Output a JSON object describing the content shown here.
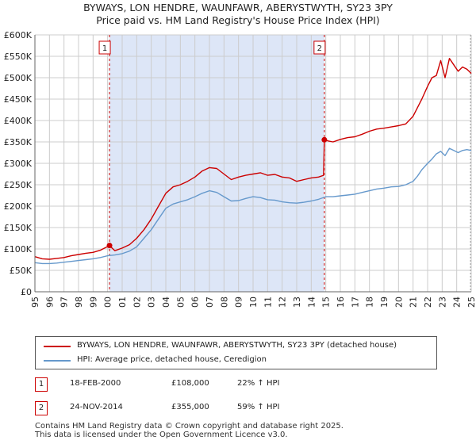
{
  "title_line1": "BYWAYS, LON HENDRE, WAUNFAWR, ABERYSTWYTH, SY23 3PY",
  "title_line2": "Price paid vs. HM Land Registry's House Price Index (HPI)",
  "colors": {
    "property": "#cc0000",
    "hpi": "#6699cc",
    "shade": "#dde6f7",
    "grid": "#cccccc"
  },
  "chart_data": {
    "type": "line",
    "xlim": [
      1995,
      2025
    ],
    "ylim": [
      0,
      600000
    ],
    "y_ticks": [
      {
        "value": 0,
        "label": "£0"
      },
      {
        "value": 50000,
        "label": "£50K"
      },
      {
        "value": 100000,
        "label": "£100K"
      },
      {
        "value": 150000,
        "label": "£150K"
      },
      {
        "value": 200000,
        "label": "£200K"
      },
      {
        "value": 250000,
        "label": "£250K"
      },
      {
        "value": 300000,
        "label": "£300K"
      },
      {
        "value": 350000,
        "label": "£350K"
      },
      {
        "value": 400000,
        "label": "£400K"
      },
      {
        "value": 450000,
        "label": "£450K"
      },
      {
        "value": 500000,
        "label": "£500K"
      },
      {
        "value": 550000,
        "label": "£550K"
      },
      {
        "value": 600000,
        "label": "£600K"
      }
    ],
    "x_ticks": [
      "1995",
      "1996",
      "1997",
      "1998",
      "1999",
      "2000",
      "2001",
      "2002",
      "2003",
      "2004",
      "2005",
      "2006",
      "2007",
      "2008",
      "2009",
      "2010",
      "2011",
      "2012",
      "2013",
      "2014",
      "2015",
      "2016",
      "2017",
      "2018",
      "2019",
      "2020",
      "2021",
      "2022",
      "2023",
      "2024",
      "2025"
    ],
    "shaded_range": [
      2000.13,
      2014.9
    ],
    "series": [
      {
        "name": "BYWAYS, LON HENDRE, WAUNFAWR, ABERYSTWYTH, SY23 3PY (detached house)",
        "color": "#cc0000",
        "x": [
          1995.0,
          1995.5,
          1996.0,
          1996.5,
          1997.0,
          1997.5,
          1998.0,
          1998.5,
          1999.0,
          1999.5,
          2000.13,
          2000.5,
          2001.0,
          2001.5,
          2002.0,
          2002.5,
          2003.0,
          2003.5,
          2004.0,
          2004.5,
          2005.0,
          2005.5,
          2006.0,
          2006.5,
          2007.0,
          2007.5,
          2008.0,
          2008.5,
          2009.0,
          2009.5,
          2010.0,
          2010.5,
          2011.0,
          2011.5,
          2012.0,
          2012.5,
          2013.0,
          2013.5,
          2014.0,
          2014.5,
          2014.85,
          2014.9,
          2015.2,
          2015.5,
          2016.0,
          2016.5,
          2017.0,
          2017.5,
          2018.0,
          2018.5,
          2019.0,
          2019.5,
          2020.0,
          2020.5,
          2021.0,
          2021.3,
          2021.6,
          2022.0,
          2022.3,
          2022.6,
          2022.9,
          2023.2,
          2023.5,
          2023.8,
          2024.1,
          2024.4,
          2024.7,
          2025.0
        ],
        "values": [
          82000,
          77000,
          76000,
          78000,
          80000,
          84000,
          87000,
          90000,
          92000,
          97000,
          108000,
          96000,
          102000,
          110000,
          125000,
          145000,
          170000,
          200000,
          230000,
          245000,
          250000,
          258000,
          268000,
          282000,
          290000,
          288000,
          275000,
          262000,
          268000,
          272000,
          275000,
          278000,
          272000,
          274000,
          268000,
          266000,
          258000,
          262000,
          266000,
          268000,
          272000,
          355000,
          352000,
          350000,
          356000,
          360000,
          362000,
          368000,
          375000,
          380000,
          382000,
          385000,
          388000,
          392000,
          410000,
          430000,
          450000,
          480000,
          500000,
          505000,
          540000,
          500000,
          545000,
          530000,
          515000,
          525000,
          520000,
          510000
        ]
      },
      {
        "name": "HPI: Average price, detached house, Ceredigion",
        "color": "#6699cc",
        "x": [
          1995.0,
          1995.5,
          1996.0,
          1996.5,
          1997.0,
          1997.5,
          1998.0,
          1998.5,
          1999.0,
          1999.5,
          2000.0,
          2000.5,
          2001.0,
          2001.5,
          2002.0,
          2002.5,
          2003.0,
          2003.5,
          2004.0,
          2004.5,
          2005.0,
          2005.5,
          2006.0,
          2006.5,
          2007.0,
          2007.5,
          2008.0,
          2008.5,
          2009.0,
          2009.5,
          2010.0,
          2010.5,
          2011.0,
          2011.5,
          2012.0,
          2012.5,
          2013.0,
          2013.5,
          2014.0,
          2014.5,
          2015.0,
          2015.5,
          2016.0,
          2016.5,
          2017.0,
          2017.5,
          2018.0,
          2018.5,
          2019.0,
          2019.5,
          2020.0,
          2020.5,
          2021.0,
          2021.3,
          2021.6,
          2022.0,
          2022.3,
          2022.6,
          2022.9,
          2023.2,
          2023.5,
          2023.8,
          2024.1,
          2024.4,
          2024.7,
          2025.0
        ],
        "values": [
          68000,
          66000,
          66000,
          67000,
          69000,
          71000,
          73000,
          75000,
          77000,
          80000,
          84000,
          86000,
          89000,
          95000,
          105000,
          125000,
          145000,
          170000,
          195000,
          205000,
          210000,
          215000,
          222000,
          230000,
          236000,
          232000,
          222000,
          212000,
          213000,
          218000,
          222000,
          220000,
          215000,
          214000,
          210000,
          208000,
          207000,
          209000,
          212000,
          216000,
          222000,
          222000,
          224000,
          226000,
          228000,
          232000,
          236000,
          240000,
          242000,
          245000,
          246000,
          250000,
          258000,
          270000,
          285000,
          300000,
          310000,
          322000,
          328000,
          318000,
          335000,
          330000,
          325000,
          330000,
          332000,
          330000
        ]
      }
    ],
    "markers": [
      {
        "label": "1",
        "x": 2000.13,
        "y": 108000
      },
      {
        "label": "2",
        "x": 2014.9,
        "y": 355000
      }
    ]
  },
  "legend": {
    "property_label": "BYWAYS, LON HENDRE, WAUNFAWR, ABERYSTWYTH, SY23 3PY (detached house)",
    "hpi_label": "HPI: Average price, detached house, Ceredigion"
  },
  "sales": [
    {
      "num": "1",
      "date": "18-FEB-2000",
      "price": "£108,000",
      "hpi": "22% ↑ HPI"
    },
    {
      "num": "2",
      "date": "24-NOV-2014",
      "price": "£355,000",
      "hpi": "59% ↑ HPI"
    }
  ],
  "footer": {
    "line1": "Contains HM Land Registry data © Crown copyright and database right 2025.",
    "line2": "This data is licensed under the Open Government Licence v3.0."
  }
}
